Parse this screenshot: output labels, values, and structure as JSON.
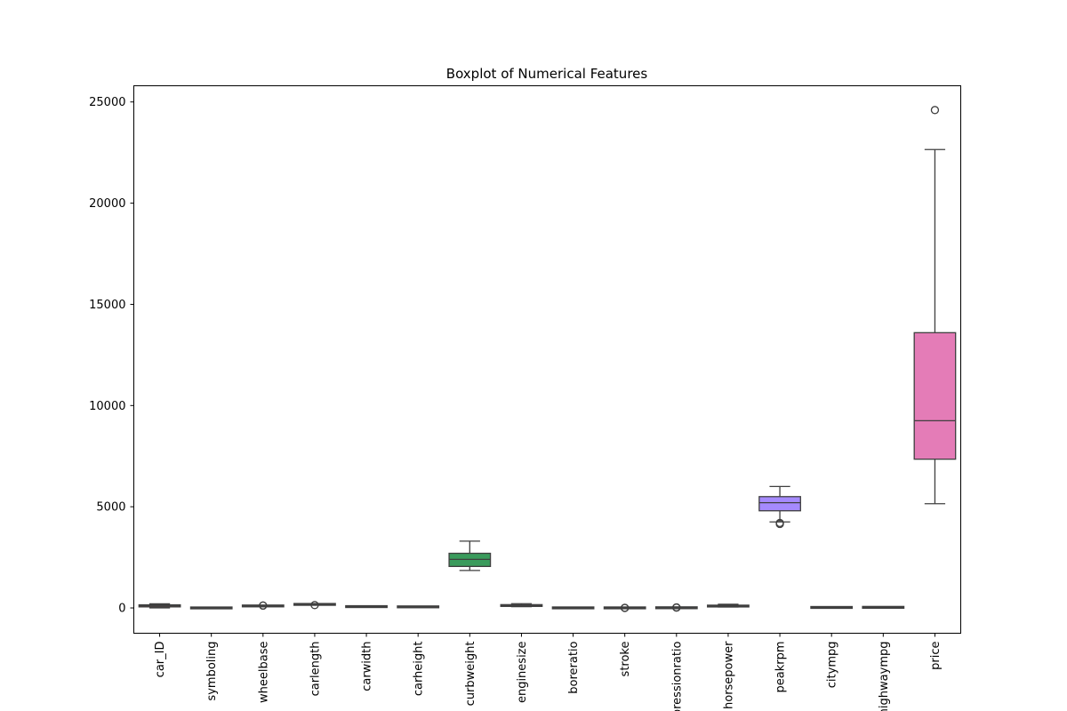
{
  "chart_data": {
    "type": "box",
    "title": "Boxplot of Numerical Features",
    "xlabel": "",
    "ylabel": "",
    "ylim": [
      -1250,
      25800
    ],
    "yticks": [
      0,
      5000,
      10000,
      15000,
      20000,
      25000
    ],
    "grid": false,
    "series": [
      {
        "name": "car_ID",
        "color": "#e1812c",
        "fill": "#c44e52",
        "min": 1,
        "q1": 52,
        "median": 103,
        "q3": 154,
        "max": 205,
        "outliers": []
      },
      {
        "name": "symboling",
        "fill": "#dd8452",
        "min": -2,
        "q1": 0,
        "median": 1,
        "q3": 2,
        "max": 3,
        "outliers": []
      },
      {
        "name": "wheelbase",
        "fill": "#8c8c8c",
        "min": 86.6,
        "q1": 94.5,
        "median": 97,
        "q3": 102.4,
        "max": 114.2,
        "outliers": [
          115.6,
          120.9
        ]
      },
      {
        "name": "carlength",
        "fill": "#c44e52",
        "min": 144.6,
        "q1": 166.3,
        "median": 173.2,
        "q3": 183.1,
        "max": 208.1,
        "outliers": [
          141.1
        ]
      },
      {
        "name": "carwidth",
        "fill": "#8172b3",
        "min": 60.3,
        "q1": 64.1,
        "median": 65.5,
        "q3": 66.9,
        "max": 70.9,
        "outliers": []
      },
      {
        "name": "carheight",
        "fill": "#937860",
        "min": 47.8,
        "q1": 52,
        "median": 54.1,
        "q3": 55.5,
        "max": 59.8,
        "outliers": []
      },
      {
        "name": "curbweight",
        "fill": "#3a9b5c",
        "min": 1850,
        "q1": 2050,
        "median": 2400,
        "q3": 2700,
        "max": 3300,
        "outliers": []
      },
      {
        "name": "enginesize",
        "fill": "#da8bc3",
        "min": 61,
        "q1": 97,
        "median": 120,
        "q3": 141,
        "max": 209,
        "outliers": []
      },
      {
        "name": "boreratio",
        "fill": "#8c8c8c",
        "min": 2.54,
        "q1": 3.15,
        "median": 3.31,
        "q3": 3.58,
        "max": 3.94,
        "outliers": []
      },
      {
        "name": "stroke",
        "fill": "#ccb974",
        "min": 2.64,
        "q1": 3.11,
        "median": 3.29,
        "q3": 3.41,
        "max": 3.9,
        "outliers": [
          2.07,
          4.17
        ]
      },
      {
        "name": "compressionratio",
        "fill": "#64b5cd",
        "min": 7,
        "q1": 8.6,
        "median": 9,
        "q3": 9.4,
        "max": 10.5,
        "outliers": [
          21,
          22,
          23
        ]
      },
      {
        "name": "horsepower",
        "fill": "#4c72b0",
        "min": 48,
        "q1": 70,
        "median": 95,
        "q3": 116,
        "max": 184,
        "outliers": []
      },
      {
        "name": "peakrpm",
        "fill": "#a58aff",
        "min": 4250,
        "q1": 4800,
        "median": 5200,
        "q3": 5500,
        "max": 6000,
        "outliers": [
          4150,
          4200
        ]
      },
      {
        "name": "citympg",
        "fill": "#3a9b5c",
        "min": 13,
        "q1": 19,
        "median": 24,
        "q3": 30,
        "max": 45,
        "outliers": []
      },
      {
        "name": "highwaympg",
        "fill": "#c44e52",
        "min": 16,
        "q1": 25,
        "median": 30,
        "q3": 34,
        "max": 50,
        "outliers": []
      },
      {
        "name": "price",
        "fill": "#e47cb7",
        "min": 5150,
        "q1": 7350,
        "median": 9250,
        "q3": 13600,
        "max": 22650,
        "outliers": [
          24600
        ]
      }
    ]
  }
}
